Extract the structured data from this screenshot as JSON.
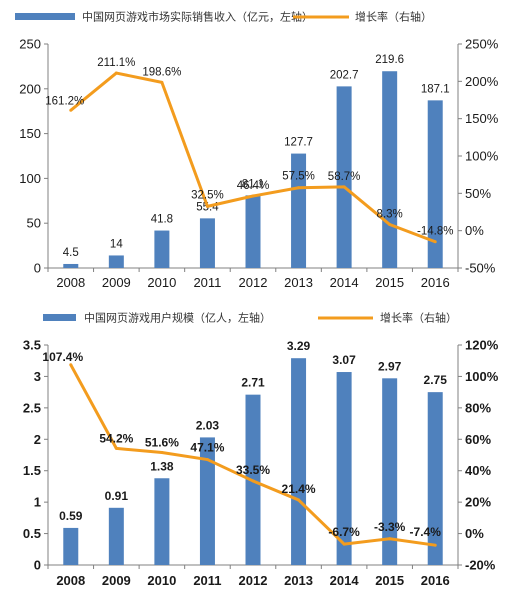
{
  "chart_data": [
    {
      "type": "bar+line",
      "categories": [
        "2008",
        "2009",
        "2010",
        "2011",
        "2012",
        "2013",
        "2014",
        "2015",
        "2016"
      ],
      "series": [
        {
          "name": "中国网页游戏市场实际销售收入（亿元，左轴）",
          "kind": "bar",
          "axis": "left",
          "values": [
            4.5,
            14,
            41.8,
            55.4,
            81.1,
            127.7,
            202.7,
            219.6,
            187.1
          ],
          "labels": [
            "4.5",
            "14",
            "41.8",
            "55.4",
            "81.1",
            "127.7",
            "202.7",
            "219.6",
            "187.1"
          ],
          "color": "#4f81bd"
        },
        {
          "name": "增长率（右轴）",
          "kind": "line",
          "axis": "right",
          "values": [
            161.2,
            211.1,
            198.6,
            32.5,
            46.4,
            57.5,
            58.7,
            8.3,
            -14.8
          ],
          "labels": [
            "161.2%",
            "211.1%",
            "198.6%",
            "32.5%",
            "46.4%",
            "57.5%",
            "58.7%",
            "8.3%",
            "-14.8%"
          ],
          "color": "#f39c1e"
        }
      ],
      "left_axis": {
        "min": 0,
        "max": 250,
        "ticks": [
          "0",
          "50",
          "100",
          "150",
          "200",
          "250"
        ]
      },
      "right_axis": {
        "min": -50,
        "max": 250,
        "ticks": [
          "-50%",
          "0%",
          "50%",
          "100%",
          "150%",
          "200%",
          "250%"
        ]
      },
      "legend": "top"
    },
    {
      "type": "bar+line",
      "categories": [
        "2008",
        "2009",
        "2010",
        "2011",
        "2012",
        "2013",
        "2014",
        "2015",
        "2016"
      ],
      "series": [
        {
          "name": "中国网页游戏用户规模（亿人，左轴）",
          "kind": "bar",
          "axis": "left",
          "values": [
            0.59,
            0.91,
            1.38,
            2.03,
            2.71,
            3.29,
            3.07,
            2.97,
            2.75
          ],
          "labels": [
            "0.59",
            "0.91",
            "1.38",
            "2.03",
            "2.71",
            "3.29",
            "3.07",
            "2.97",
            "2.75"
          ],
          "color": "#4f81bd"
        },
        {
          "name": "增长率（右轴）",
          "kind": "line",
          "axis": "right",
          "values": [
            107.4,
            54.2,
            51.6,
            47.1,
            33.5,
            21.4,
            -6.7,
            -3.3,
            -7.4
          ],
          "labels": [
            "107.4%",
            "54.2%",
            "51.6%",
            "47.1%",
            "33.5%",
            "21.4%",
            "-6.7%",
            "-3.3%",
            "-7.4%"
          ],
          "color": "#f39c1e"
        }
      ],
      "left_axis": {
        "min": 0,
        "max": 3.5,
        "ticks": [
          "0",
          "0.5",
          "1",
          "1.5",
          "2",
          "2.5",
          "3",
          "3.5"
        ]
      },
      "right_axis": {
        "min": -20,
        "max": 120,
        "ticks": [
          "-20%",
          "0%",
          "20%",
          "40%",
          "60%",
          "80%",
          "100%",
          "120%"
        ]
      },
      "legend": "top"
    }
  ]
}
